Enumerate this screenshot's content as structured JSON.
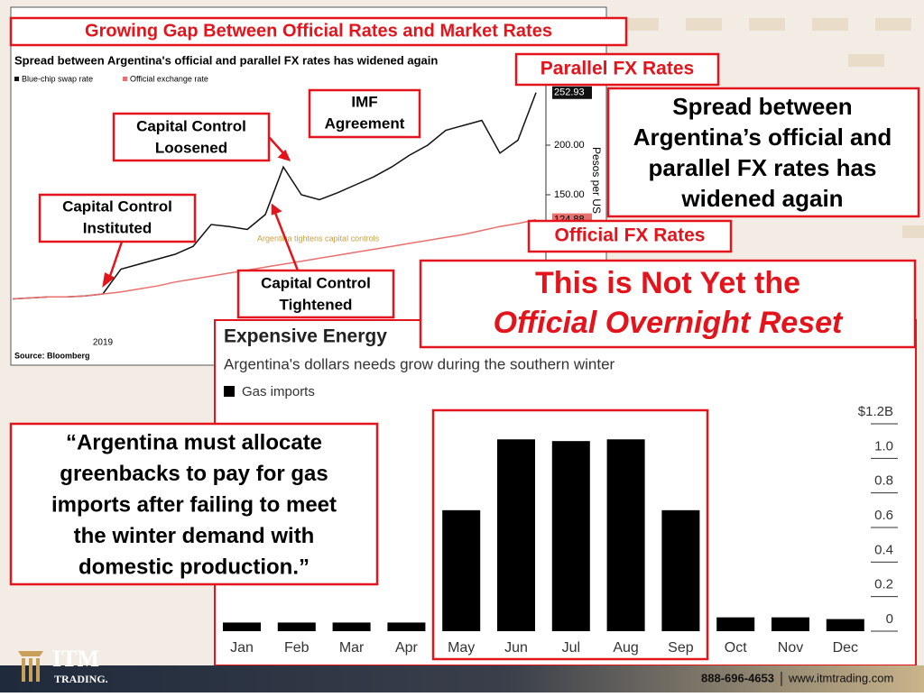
{
  "slide": {
    "title": "Growing Gap Between Official Rates and Market Rates",
    "callouts": {
      "parallel": "Parallel FX Rates",
      "official": "Official FX Rates",
      "spread": [
        "Spread between",
        "Argentina’s official and",
        "parallel FX rates has",
        "widened again"
      ],
      "reset": [
        "This is Not Yet the",
        "Official Overnight Reset"
      ],
      "instituted": [
        "Capital Control",
        "Instituted"
      ],
      "loosened": [
        "Capital Control",
        "Loosened"
      ],
      "imf": [
        "IMF",
        "Agreement"
      ],
      "tightened": [
        "Capital Control",
        "Tightened"
      ],
      "quote": [
        "“Argentina must allocate",
        "greenbacks to pay for gas",
        "imports after failing to meet",
        "the winter demand with",
        "domestic production.”"
      ]
    },
    "footer": {
      "brand": "ITM",
      "brand2": "TRADING.",
      "phone": "888-696-4653",
      "url": "www.itmtrading.com"
    }
  },
  "chart_data": [
    {
      "type": "line",
      "subtitle": "Spread between Argentina's official and parallel FX rates has widened again",
      "y_label": "Pesos per US",
      "source": "Source: Bloomberg",
      "annotation": "Argentina tightens capital controls",
      "categories": [
        null,
        null,
        null,
        null,
        null,
        "2019",
        null,
        null,
        null,
        null,
        null,
        null,
        null,
        null,
        null,
        null,
        null,
        null,
        null,
        null,
        null,
        null,
        null,
        null,
        null,
        null,
        null,
        null,
        null,
        null
      ],
      "series": [
        {
          "name": "Blue-chip swap rate",
          "color": "#111111",
          "values": [
            45,
            46,
            47,
            47,
            48,
            50,
            75,
            80,
            85,
            90,
            98,
            120,
            118,
            115,
            130,
            178,
            150,
            145,
            152,
            160,
            168,
            178,
            190,
            200,
            215,
            220,
            225,
            192,
            205,
            252.93
          ],
          "value_labels": [
            null,
            null,
            null,
            null,
            null,
            null,
            null,
            null,
            null,
            null,
            null,
            null,
            null,
            null,
            null,
            null,
            null,
            null,
            null,
            null,
            null,
            null,
            null,
            null,
            null,
            null,
            null,
            null,
            null,
            "252.93"
          ]
        },
        {
          "name": "Official exchange rate",
          "color": "#e8706d",
          "values": [
            45,
            46,
            47,
            47,
            48,
            50,
            52,
            55,
            58,
            62,
            65,
            68,
            71,
            74,
            77,
            80,
            83,
            86,
            89,
            92,
            95,
            98,
            101,
            104,
            107,
            110,
            114,
            118,
            121,
            124.88
          ],
          "value_labels": [
            null,
            null,
            null,
            null,
            null,
            null,
            null,
            null,
            null,
            null,
            null,
            null,
            null,
            null,
            null,
            null,
            null,
            null,
            null,
            null,
            null,
            null,
            null,
            null,
            null,
            null,
            null,
            null,
            null,
            "124.88"
          ]
        }
      ],
      "ylim": [
        10,
        260
      ],
      "yticks": [
        {
          "value": 150,
          "label": "150.00"
        },
        {
          "value": 200,
          "label": "200.00"
        }
      ]
    },
    {
      "type": "bar",
      "title": "Expensive Energy",
      "subtitle": "Argentina's dollars needs grow during the southern winter",
      "legend": "Gas imports",
      "color": "#000000",
      "categories": [
        "Jan",
        "Feb",
        "Mar",
        "Apr",
        "May",
        "Jun",
        "Jul",
        "Aug",
        "Sep",
        "Oct",
        "Nov",
        "Dec"
      ],
      "values": [
        0.05,
        0.05,
        0.05,
        0.05,
        0.7,
        1.11,
        1.1,
        1.11,
        0.7,
        0.08,
        0.08,
        0.07
      ],
      "ylim": [
        0,
        1.2
      ],
      "yticks": [
        0,
        0.2,
        0.4,
        0.6,
        0.8,
        {
          "value": 1,
          "label": "1.0"
        },
        {
          "value": 1.2,
          "label": "$1.2B"
        }
      ]
    }
  ]
}
